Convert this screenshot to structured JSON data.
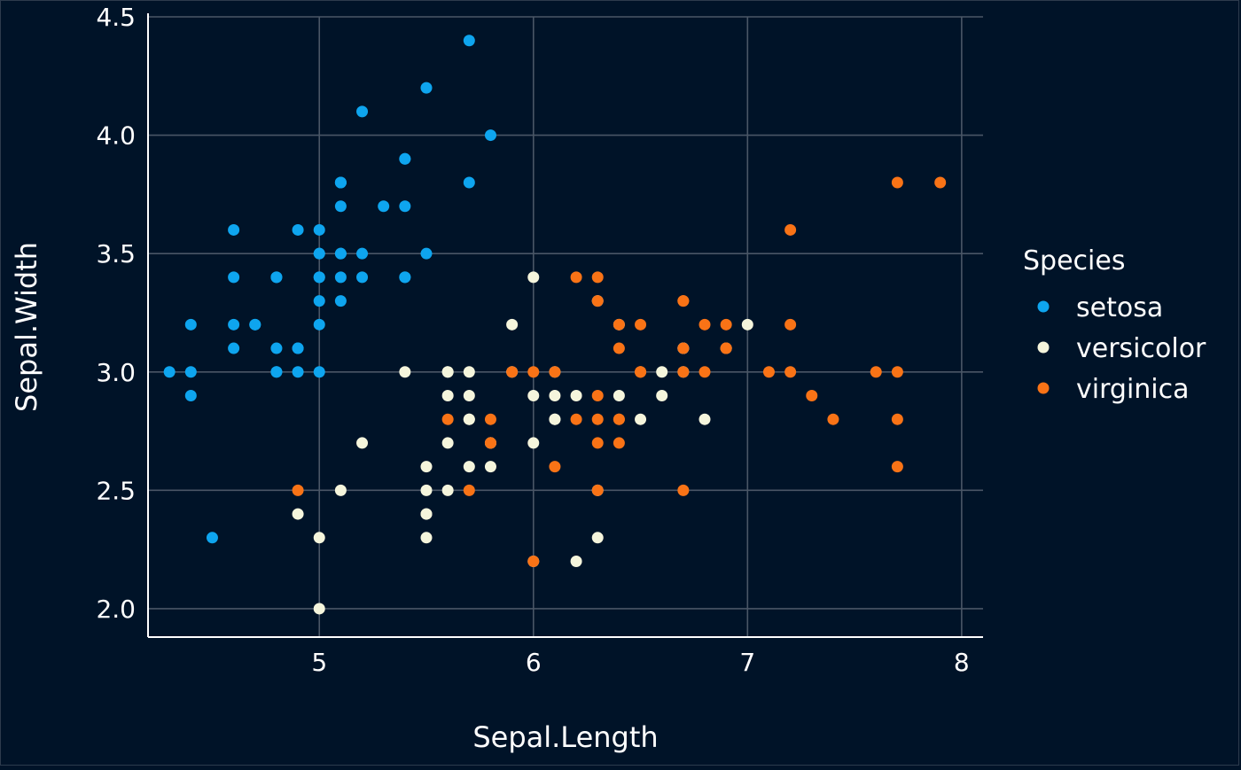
{
  "colors": {
    "background": "#001328",
    "grid": "#4a5666",
    "axis": "#ffffff",
    "text": "#ffffff",
    "setosa": "#0ea5ef",
    "versicolor": "#f5f5dc",
    "virginica": "#f97316"
  },
  "chart_data": {
    "type": "scatter",
    "title": "",
    "xlabel": "Sepal.Length",
    "ylabel": "Sepal.Width",
    "xlim": [
      4.2,
      8.1
    ],
    "ylim": [
      1.88,
      4.5
    ],
    "x_ticks": [
      5,
      6,
      7,
      8
    ],
    "x_tick_labels": [
      "5",
      "6",
      "7",
      "8"
    ],
    "y_ticks": [
      2.0,
      2.5,
      3.0,
      3.5,
      4.0,
      4.5
    ],
    "y_tick_labels": [
      "2.0",
      "2.5",
      "3.0",
      "3.5",
      "4.0",
      "4.5"
    ],
    "grid": true,
    "legend": {
      "title": "Species",
      "placement": "right"
    },
    "series": [
      {
        "name": "setosa",
        "color": "#0ea5ef",
        "points": [
          [
            5.1,
            3.5
          ],
          [
            4.9,
            3.0
          ],
          [
            4.7,
            3.2
          ],
          [
            4.6,
            3.1
          ],
          [
            5.0,
            3.6
          ],
          [
            5.4,
            3.9
          ],
          [
            4.6,
            3.4
          ],
          [
            5.0,
            3.4
          ],
          [
            4.4,
            2.9
          ],
          [
            4.9,
            3.1
          ],
          [
            5.4,
            3.7
          ],
          [
            4.8,
            3.4
          ],
          [
            4.8,
            3.0
          ],
          [
            4.3,
            3.0
          ],
          [
            5.8,
            4.0
          ],
          [
            5.7,
            4.4
          ],
          [
            5.4,
            3.9
          ],
          [
            5.1,
            3.5
          ],
          [
            5.7,
            3.8
          ],
          [
            5.1,
            3.8
          ],
          [
            5.4,
            3.4
          ],
          [
            5.1,
            3.7
          ],
          [
            4.6,
            3.6
          ],
          [
            5.1,
            3.3
          ],
          [
            4.8,
            3.4
          ],
          [
            5.0,
            3.0
          ],
          [
            5.0,
            3.4
          ],
          [
            5.2,
            3.5
          ],
          [
            5.2,
            3.4
          ],
          [
            4.7,
            3.2
          ],
          [
            4.8,
            3.1
          ],
          [
            5.4,
            3.4
          ],
          [
            5.2,
            4.1
          ],
          [
            5.5,
            4.2
          ],
          [
            4.9,
            3.1
          ],
          [
            5.0,
            3.2
          ],
          [
            5.5,
            3.5
          ],
          [
            4.9,
            3.6
          ],
          [
            4.4,
            3.0
          ],
          [
            5.1,
            3.4
          ],
          [
            5.0,
            3.5
          ],
          [
            4.5,
            2.3
          ],
          [
            4.4,
            3.2
          ],
          [
            5.0,
            3.5
          ],
          [
            5.1,
            3.8
          ],
          [
            4.8,
            3.0
          ],
          [
            5.1,
            3.8
          ],
          [
            4.6,
            3.2
          ],
          [
            5.3,
            3.7
          ],
          [
            5.0,
            3.3
          ]
        ]
      },
      {
        "name": "versicolor",
        "color": "#f5f5dc",
        "points": [
          [
            7.0,
            3.2
          ],
          [
            6.4,
            3.2
          ],
          [
            6.9,
            3.1
          ],
          [
            5.5,
            2.3
          ],
          [
            6.5,
            2.8
          ],
          [
            5.7,
            2.8
          ],
          [
            6.3,
            3.3
          ],
          [
            4.9,
            2.4
          ],
          [
            6.6,
            2.9
          ],
          [
            5.2,
            2.7
          ],
          [
            5.0,
            2.0
          ],
          [
            5.9,
            3.0
          ],
          [
            6.0,
            2.2
          ],
          [
            6.1,
            2.9
          ],
          [
            5.6,
            2.9
          ],
          [
            6.7,
            3.1
          ],
          [
            5.6,
            3.0
          ],
          [
            5.8,
            2.7
          ],
          [
            6.2,
            2.2
          ],
          [
            5.6,
            2.5
          ],
          [
            5.9,
            3.2
          ],
          [
            6.1,
            2.8
          ],
          [
            6.3,
            2.5
          ],
          [
            6.1,
            2.8
          ],
          [
            6.4,
            2.9
          ],
          [
            6.6,
            3.0
          ],
          [
            6.8,
            2.8
          ],
          [
            6.7,
            3.0
          ],
          [
            6.0,
            2.9
          ],
          [
            5.7,
            2.6
          ],
          [
            5.5,
            2.4
          ],
          [
            5.5,
            2.4
          ],
          [
            5.8,
            2.7
          ],
          [
            6.0,
            2.7
          ],
          [
            5.4,
            3.0
          ],
          [
            6.0,
            3.4
          ],
          [
            6.7,
            3.1
          ],
          [
            6.3,
            2.3
          ],
          [
            5.6,
            3.0
          ],
          [
            5.5,
            2.5
          ],
          [
            5.5,
            2.6
          ],
          [
            6.1,
            3.0
          ],
          [
            5.8,
            2.6
          ],
          [
            5.0,
            2.3
          ],
          [
            5.6,
            2.7
          ],
          [
            5.7,
            3.0
          ],
          [
            5.7,
            2.9
          ],
          [
            6.2,
            2.9
          ],
          [
            5.1,
            2.5
          ],
          [
            5.7,
            2.8
          ]
        ]
      },
      {
        "name": "virginica",
        "color": "#f97316",
        "points": [
          [
            6.3,
            3.3
          ],
          [
            5.8,
            2.7
          ],
          [
            7.1,
            3.0
          ],
          [
            6.3,
            2.9
          ],
          [
            6.5,
            3.0
          ],
          [
            7.6,
            3.0
          ],
          [
            4.9,
            2.5
          ],
          [
            7.3,
            2.9
          ],
          [
            6.7,
            2.5
          ],
          [
            7.2,
            3.6
          ],
          [
            6.5,
            3.2
          ],
          [
            6.4,
            2.7
          ],
          [
            6.8,
            3.0
          ],
          [
            5.7,
            2.5
          ],
          [
            5.8,
            2.8
          ],
          [
            6.4,
            3.2
          ],
          [
            6.5,
            3.0
          ],
          [
            7.7,
            3.8
          ],
          [
            7.7,
            2.6
          ],
          [
            6.0,
            2.2
          ],
          [
            6.9,
            3.2
          ],
          [
            5.6,
            2.8
          ],
          [
            7.7,
            2.8
          ],
          [
            6.3,
            2.7
          ],
          [
            6.7,
            3.3
          ],
          [
            7.2,
            3.2
          ],
          [
            6.2,
            2.8
          ],
          [
            6.1,
            3.0
          ],
          [
            6.4,
            2.8
          ],
          [
            7.2,
            3.0
          ],
          [
            7.4,
            2.8
          ],
          [
            7.9,
            3.8
          ],
          [
            6.4,
            2.8
          ],
          [
            6.3,
            2.8
          ],
          [
            6.1,
            2.6
          ],
          [
            7.7,
            3.0
          ],
          [
            6.3,
            3.4
          ],
          [
            6.4,
            3.1
          ],
          [
            6.0,
            3.0
          ],
          [
            6.9,
            3.1
          ],
          [
            6.7,
            3.1
          ],
          [
            6.9,
            3.1
          ],
          [
            5.8,
            2.7
          ],
          [
            6.8,
            3.2
          ],
          [
            6.7,
            3.3
          ],
          [
            6.7,
            3.0
          ],
          [
            6.3,
            2.5
          ],
          [
            6.5,
            3.0
          ],
          [
            6.2,
            3.4
          ],
          [
            5.9,
            3.0
          ]
        ]
      }
    ]
  }
}
